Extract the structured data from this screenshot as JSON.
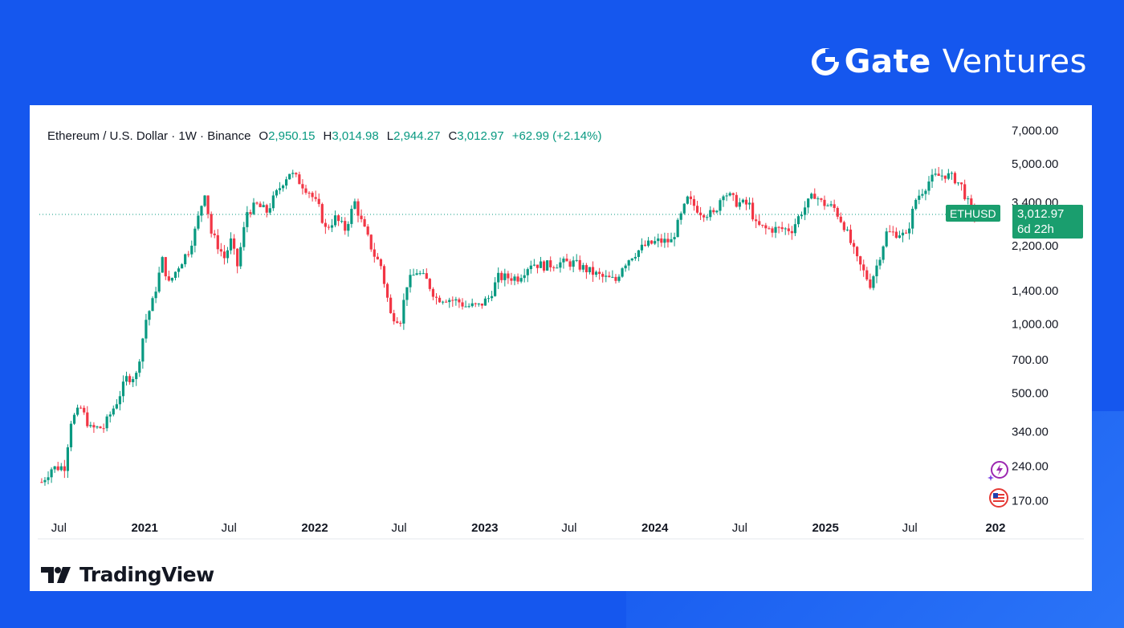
{
  "brand": {
    "name_bold": "Gate",
    "name_light": "Ventures",
    "logo_icon": "gate-g-icon"
  },
  "legend": {
    "symbol_text": "Ethereum / U.S. Dollar · 1W · Binance",
    "open_label": "O",
    "open_value": "2,950.15",
    "high_label": "H",
    "high_value": "3,014.98",
    "low_label": "L",
    "low_value": "2,944.27",
    "close_label": "C",
    "close_value": "3,012.97",
    "change": "+62.99 (+2.14%)"
  },
  "price_tag": {
    "symbol": "ETHUSD",
    "price": "3,012.97",
    "countdown": "6d 22h"
  },
  "footer": {
    "tradingview_text": "TradingView"
  },
  "colors": {
    "up": "#089981",
    "down": "#f23645",
    "background": "#1557ee",
    "tag": "#1a9e6e"
  },
  "chart_data": {
    "type": "candlestick",
    "title": "Ethereum / U.S. Dollar · 1W · Binance",
    "xlabel": "",
    "ylabel": "",
    "y_scale": "log",
    "y_ticks": [
      7000,
      5000,
      3400,
      2200,
      1400,
      1000,
      700,
      500,
      340,
      240,
      170
    ],
    "y_tick_labels": [
      "7,000.00",
      "5,000.00",
      "3,400.00",
      "2,200.00",
      "1,400.00",
      "1,000.00",
      "700.00",
      "500.00",
      "340.00",
      "240.00",
      "170.00"
    ],
    "ylim": [
      150,
      7800
    ],
    "x_ticks": [
      {
        "date": "2020-07-01",
        "label": "Jul",
        "bold": false
      },
      {
        "date": "2021-01-01",
        "label": "2021",
        "bold": true
      },
      {
        "date": "2021-07-01",
        "label": "Jul",
        "bold": false
      },
      {
        "date": "2022-01-01",
        "label": "2022",
        "bold": true
      },
      {
        "date": "2022-07-01",
        "label": "Jul",
        "bold": false
      },
      {
        "date": "2023-01-01",
        "label": "2023",
        "bold": true
      },
      {
        "date": "2023-07-01",
        "label": "Jul",
        "bold": false
      },
      {
        "date": "2024-01-01",
        "label": "2024",
        "bold": true
      },
      {
        "date": "2024-07-01",
        "label": "Jul",
        "bold": false
      },
      {
        "date": "2025-01-01",
        "label": "2025",
        "bold": true
      },
      {
        "date": "2025-07-01",
        "label": "Jul",
        "bold": false
      },
      {
        "date": "2026-01-01",
        "label": "202",
        "bold": true
      }
    ],
    "xlim": [
      "2020-05-20",
      "2026-01-20"
    ],
    "last_price": 3012.97,
    "path_dates": [
      "2020-05-25",
      "2020-06-15",
      "2020-07-13",
      "2020-07-27",
      "2020-08-17",
      "2020-09-07",
      "2020-10-05",
      "2020-11-02",
      "2020-11-23",
      "2020-12-14",
      "2021-01-04",
      "2021-01-18",
      "2021-02-08",
      "2021-02-22",
      "2021-03-15",
      "2021-04-05",
      "2021-04-19",
      "2021-05-10",
      "2021-05-24",
      "2021-06-21",
      "2021-07-05",
      "2021-07-19",
      "2021-08-09",
      "2021-08-30",
      "2021-09-20",
      "2021-10-04",
      "2021-10-25",
      "2021-11-08",
      "2021-11-29",
      "2021-12-20",
      "2022-01-10",
      "2022-01-24",
      "2022-02-14",
      "2022-03-07",
      "2022-03-28",
      "2022-04-11",
      "2022-05-09",
      "2022-05-23",
      "2022-06-13",
      "2022-07-04",
      "2022-07-18",
      "2022-08-08",
      "2022-08-29",
      "2022-09-19",
      "2022-10-10",
      "2022-11-07",
      "2022-11-21",
      "2022-12-19",
      "2023-01-09",
      "2023-01-30",
      "2023-02-20",
      "2023-03-13",
      "2023-04-10",
      "2023-05-08",
      "2023-06-12",
      "2023-07-10",
      "2023-08-14",
      "2023-09-11",
      "2023-10-09",
      "2023-10-23",
      "2023-11-13",
      "2023-12-11",
      "2024-01-08",
      "2024-02-05",
      "2024-03-11",
      "2024-04-08",
      "2024-05-06",
      "2024-05-27",
      "2024-06-24",
      "2024-07-22",
      "2024-08-05",
      "2024-08-26",
      "2024-09-23",
      "2024-10-21",
      "2024-11-11",
      "2024-12-09",
      "2024-12-23",
      "2025-01-20",
      "2025-02-10",
      "2025-03-10",
      "2025-04-07",
      "2025-04-21",
      "2025-05-12",
      "2025-06-09",
      "2025-06-23",
      "2025-07-14",
      "2025-08-11",
      "2025-08-25",
      "2025-09-15",
      "2025-10-06",
      "2025-10-20",
      "2025-11-10",
      "2025-11-24"
    ],
    "path_values": [
      205,
      235,
      240,
      380,
      430,
      350,
      355,
      460,
      580,
      600,
      1050,
      1250,
      1900,
      1500,
      1800,
      2100,
      2550,
      3800,
      2500,
      1950,
      2300,
      1800,
      3100,
      3300,
      3100,
      3500,
      4200,
      4600,
      4200,
      3800,
      3200,
      2600,
      2900,
      2600,
      3400,
      2800,
      2000,
      1800,
      1100,
      1050,
      1500,
      1700,
      1550,
      1300,
      1300,
      1250,
      1200,
      1200,
      1300,
      1600,
      1600,
      1600,
      1850,
      1800,
      1850,
      1850,
      1700,
      1600,
      1550,
      1800,
      2000,
      2200,
      2300,
      2300,
      3500,
      3100,
      3000,
      3800,
      3400,
      3300,
      2700,
      2600,
      2600,
      2600,
      3100,
      3700,
      3400,
      3200,
      2700,
      1900,
      1500,
      1800,
      2500,
      2500,
      2400,
      3500,
      4200,
      4400,
      4500,
      4300,
      4000,
      3100,
      3013
    ],
    "candle_note": "weekly OHLC candles approximated from the visible price path"
  }
}
